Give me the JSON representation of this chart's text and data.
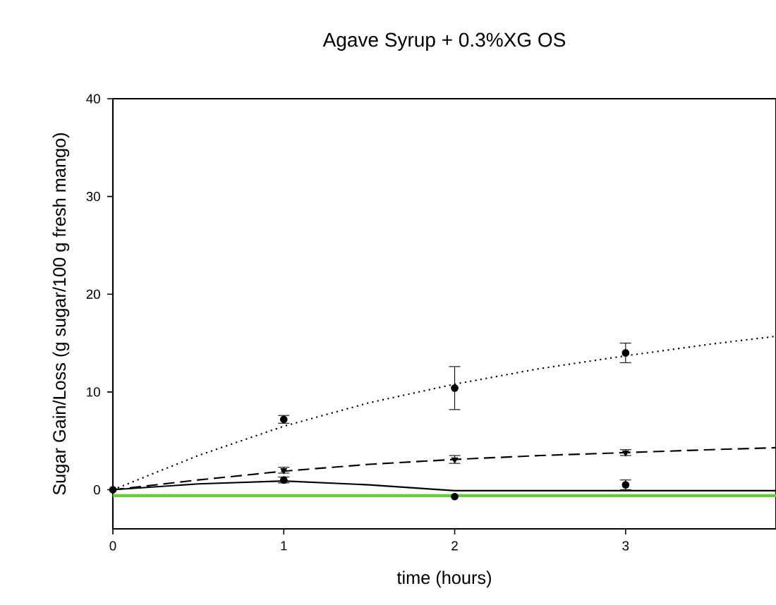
{
  "chart_data": {
    "type": "scatter",
    "title": "Agave Syrup + 0.3%XG OS",
    "xlabel": "time (hours)",
    "ylabel": "Sugar Gain/Loss (g sugar/100 g fresh mango)",
    "xlim": [
      0,
      3.88
    ],
    "ylim": [
      -4,
      40
    ],
    "xticks": [
      0,
      1,
      2,
      3
    ],
    "yticks": [
      0,
      10,
      20,
      30,
      40
    ],
    "series": [
      {
        "type": "line",
        "line_style": "dotted",
        "color": "#000000",
        "x": [
          0,
          0.5,
          1,
          1.5,
          2,
          2.5,
          3,
          3.5,
          3.88
        ],
        "values": [
          0,
          3.5,
          6.5,
          8.9,
          10.8,
          12.4,
          13.7,
          14.9,
          15.7
        ]
      },
      {
        "type": "line",
        "line_style": "dashed",
        "color": "#000000",
        "x": [
          0,
          0.5,
          1,
          1.5,
          2,
          2.5,
          3,
          3.5,
          3.88
        ],
        "values": [
          0,
          1.0,
          1.9,
          2.6,
          3.1,
          3.5,
          3.8,
          4.1,
          4.3
        ]
      },
      {
        "type": "line",
        "line_style": "solid",
        "color": "#000000",
        "x": [
          0,
          0.5,
          1,
          1.5,
          2,
          2.5,
          3,
          3.5,
          3.88
        ],
        "values": [
          0,
          0.6,
          0.9,
          0.5,
          -0.1,
          -0.1,
          -0.1,
          -0.1,
          -0.1
        ]
      },
      {
        "marker": "circle",
        "color": "#000000",
        "x": [
          1,
          2,
          3
        ],
        "values": [
          7.2,
          10.4,
          14.0
        ],
        "errors": [
          0.4,
          2.2,
          1.0
        ]
      },
      {
        "marker": "triangle",
        "color": "#000000",
        "x": [
          1,
          2,
          3
        ],
        "values": [
          2.0,
          3.1,
          3.8
        ],
        "errors": [
          0.3,
          0.4,
          0.3
        ]
      },
      {
        "marker": "circle",
        "color": "#000000",
        "x": [
          0,
          1,
          2,
          3
        ],
        "values": [
          0,
          1.0,
          -0.7,
          0.5
        ],
        "errors": [
          null,
          0.3,
          null,
          0.5
        ]
      }
    ],
    "ref_lines": [
      {
        "axis": "y",
        "value": -0.6,
        "color": "#66cc33"
      }
    ]
  }
}
